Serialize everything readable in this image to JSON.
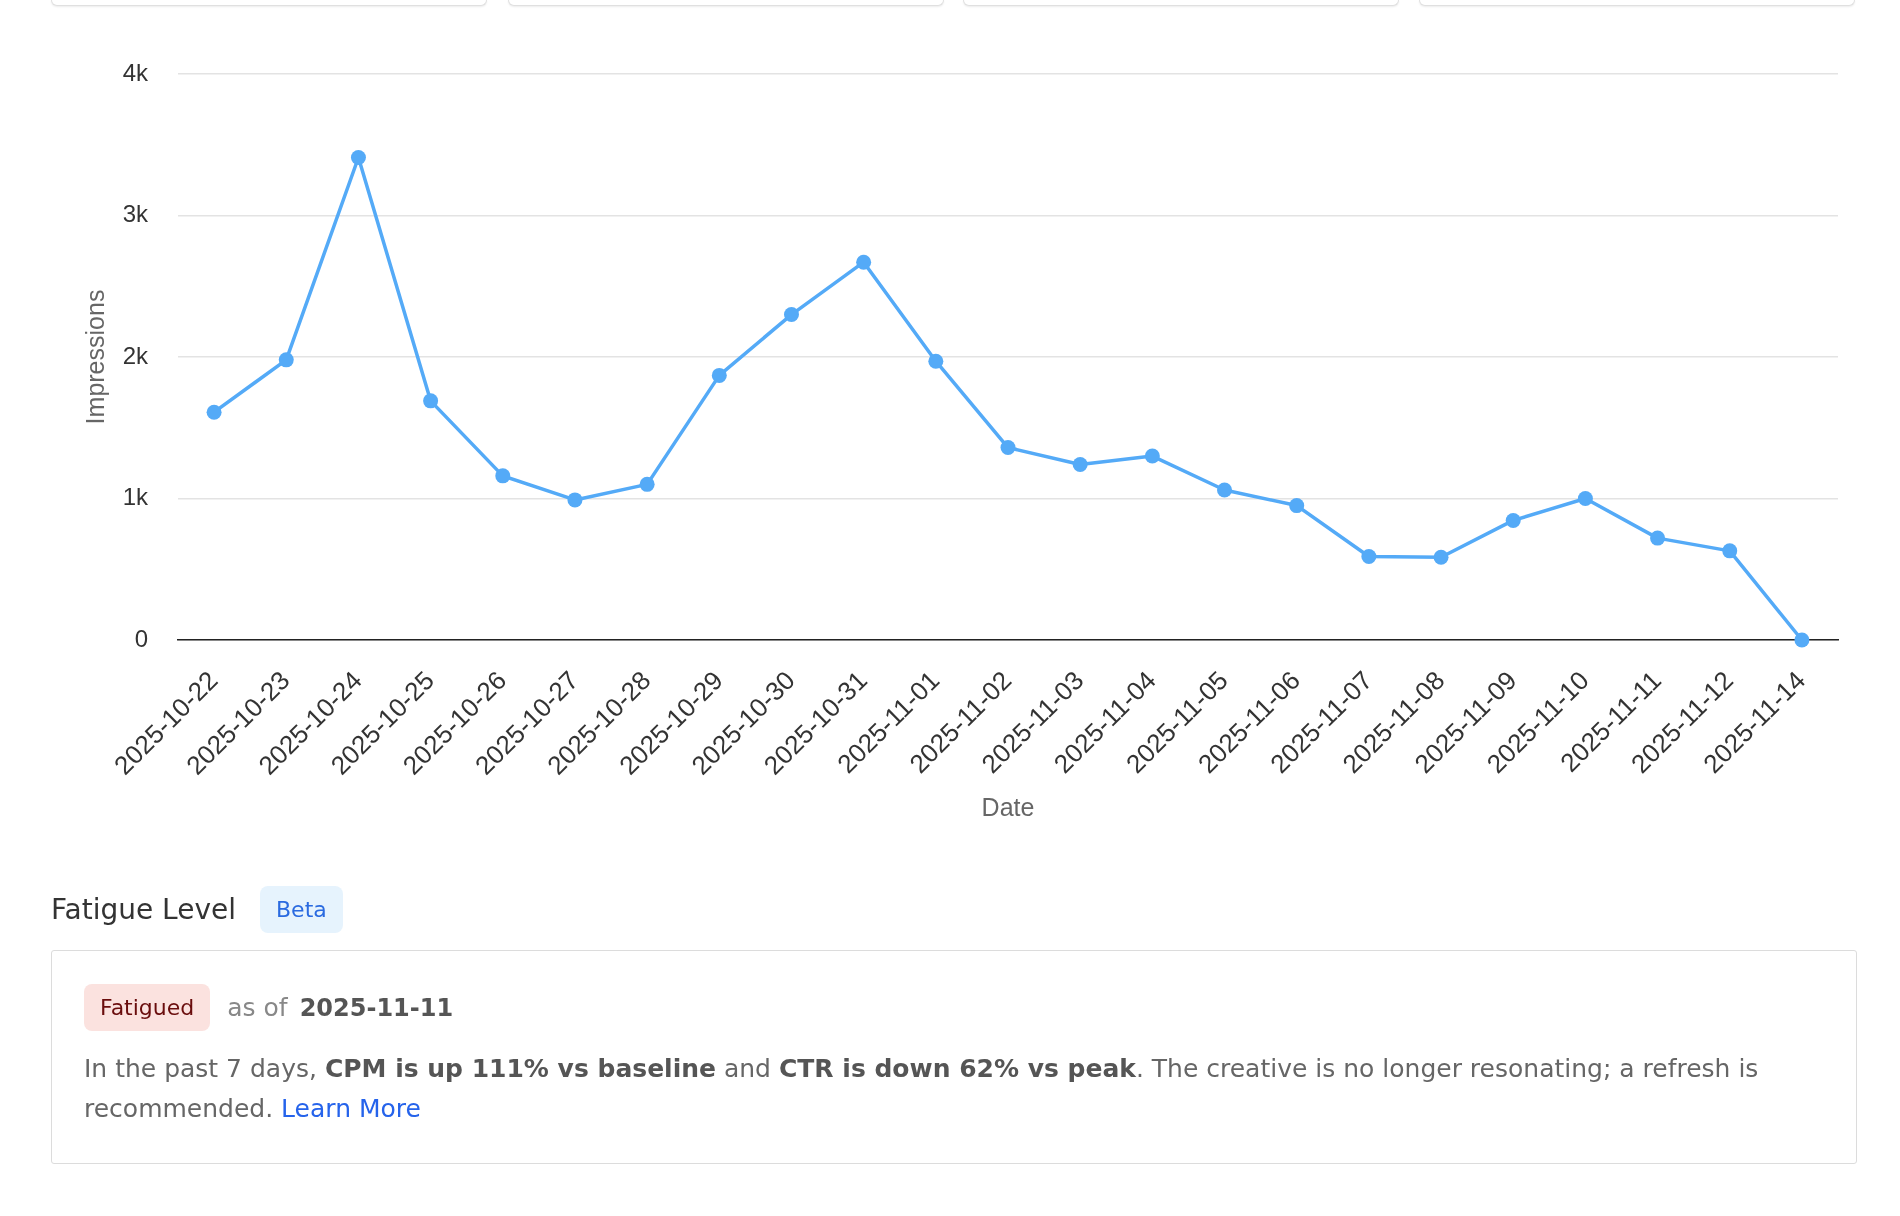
{
  "chart_data": {
    "type": "line",
    "categories": [
      "2025-10-22",
      "2025-10-23",
      "2025-10-24",
      "2025-10-25",
      "2025-10-26",
      "2025-10-27",
      "2025-10-28",
      "2025-10-29",
      "2025-10-30",
      "2025-10-31",
      "2025-11-01",
      "2025-11-02",
      "2025-11-03",
      "2025-11-04",
      "2025-11-05",
      "2025-11-06",
      "2025-11-07",
      "2025-11-08",
      "2025-11-09",
      "2025-11-10",
      "2025-11-11",
      "2025-11-12",
      "2025-11-14"
    ],
    "values": [
      1610,
      1980,
      3410,
      1690,
      1160,
      990,
      1100,
      1870,
      2300,
      2670,
      1970,
      1360,
      1240,
      1300,
      1060,
      950,
      590,
      585,
      845,
      1000,
      720,
      630,
      0
    ],
    "color": "#54aaf7",
    "xlabel": "Date",
    "ylabel": "Impressions",
    "ylim": [
      0,
      4000
    ],
    "yticks": [
      0,
      {
        "value": 1000,
        "label": "1k"
      },
      {
        "value": 2000,
        "label": "2k"
      },
      {
        "value": 3000,
        "label": "3k"
      },
      {
        "value": 4000,
        "label": "4k"
      }
    ],
    "grid": "y",
    "marker": "circle",
    "line_style": "solid",
    "annotations": [
      "Fatigue Level",
      "Beta",
      "Fatigued",
      "as of",
      "2025-11-11",
      "In the past 7 days,",
      "CPM is up 111% vs baseline",
      "and",
      "CTR is down 62% vs peak",
      ". The creative is no longer resonating; a refresh is recommended.",
      "Learn More"
    ]
  }
}
